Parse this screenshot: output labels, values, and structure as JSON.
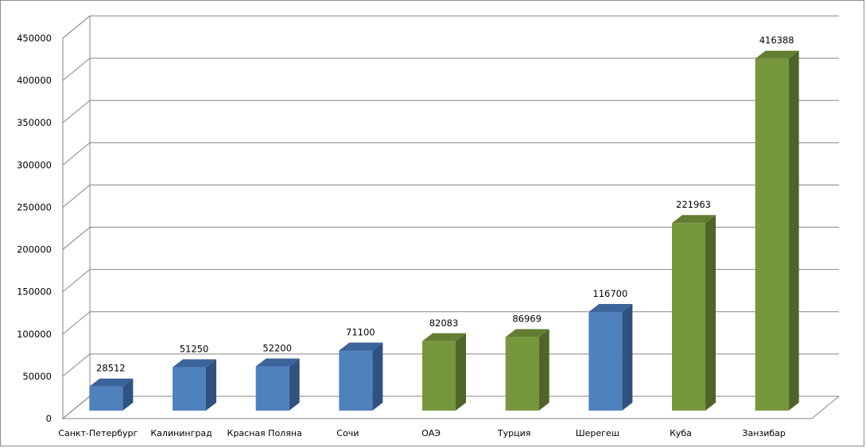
{
  "chart_data": {
    "type": "bar",
    "title": "",
    "xlabel": "",
    "ylabel": "",
    "ylim": [
      0,
      450000
    ],
    "ytick_step": 50000,
    "grid": true,
    "legend": "none",
    "style": "3d-column",
    "categories": [
      "Санкт-Петербург",
      "Калининград",
      "Красная Поляна",
      "Сочи",
      "ОАЭ",
      "Турция",
      "Шерегеш",
      "Куба",
      "Занзибар"
    ],
    "values": [
      28512,
      51250,
      52200,
      71100,
      82083,
      86969,
      116700,
      221963,
      416388
    ],
    "bar_colors": [
      "blue",
      "blue",
      "blue",
      "blue",
      "green",
      "green",
      "blue",
      "green",
      "green"
    ]
  },
  "palette": {
    "blue": {
      "front": "#4f81bd",
      "side": "#2f5280",
      "top": "#3b649a"
    },
    "green": {
      "front": "#77973d",
      "side": "#4f6428",
      "top": "#627e31"
    },
    "gridline": "#868686",
    "wall": "#ffffff"
  }
}
